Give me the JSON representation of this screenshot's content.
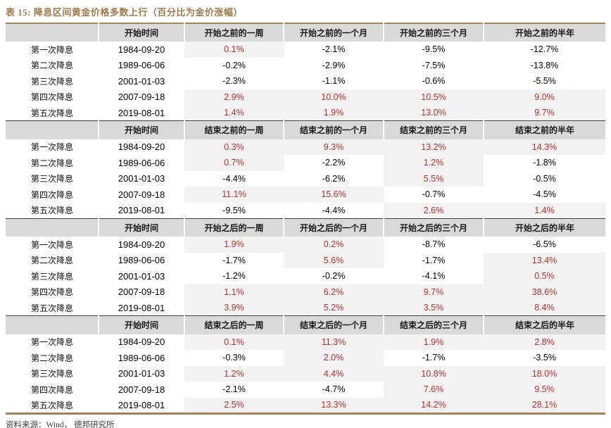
{
  "title": "表 15: 降息区间黄金价格多数上行（百分比为金价涨幅）",
  "footer": "资料来源：Wind， 德邦研究所",
  "colors": {
    "accent_brown": "#9c7a49",
    "rule_brown": "#a1835a",
    "header_bg": "#d9d9d9",
    "highlight_bg": "#f2f2f2",
    "highlight_text_red": "#b52f2f",
    "body_text": "#000000"
  },
  "table": {
    "sections": [
      {
        "headers": [
          "开始时间",
          "开始之前的一周",
          "开始之前的一个月",
          "开始之前的三个月",
          "开始之前的半年"
        ],
        "rows": [
          {
            "label": "第一次降息",
            "date": "1984-09-20",
            "values": [
              {
                "v": "0.1%",
                "hl": true
              },
              {
                "v": "-2.1%",
                "hl": false
              },
              {
                "v": "-9.5%",
                "hl": false
              },
              {
                "v": "-12.7%",
                "hl": false
              }
            ]
          },
          {
            "label": "第二次降息",
            "date": "1989-06-06",
            "values": [
              {
                "v": "-0.2%",
                "hl": false
              },
              {
                "v": "-2.9%",
                "hl": false
              },
              {
                "v": "-7.5%",
                "hl": false
              },
              {
                "v": "-13.8%",
                "hl": false
              }
            ]
          },
          {
            "label": "第三次降息",
            "date": "2001-01-03",
            "values": [
              {
                "v": "-2.3%",
                "hl": false
              },
              {
                "v": "-1.1%",
                "hl": false
              },
              {
                "v": "-0.6%",
                "hl": false
              },
              {
                "v": "-5.5%",
                "hl": false
              }
            ]
          },
          {
            "label": "第四次降息",
            "date": "2007-09-18",
            "values": [
              {
                "v": "2.9%",
                "hl": true
              },
              {
                "v": "10.0%",
                "hl": true
              },
              {
                "v": "10.5%",
                "hl": true
              },
              {
                "v": "9.0%",
                "hl": true
              }
            ]
          },
          {
            "label": "第五次降息",
            "date": "2019-08-01",
            "values": [
              {
                "v": "1.4%",
                "hl": true
              },
              {
                "v": "1.9%",
                "hl": true
              },
              {
                "v": "13.0%",
                "hl": true
              },
              {
                "v": "9.7%",
                "hl": true
              }
            ]
          }
        ]
      },
      {
        "headers": [
          "开始时间",
          "结束之前的一周",
          "结束之前的一个月",
          "结束之前的三个月",
          "结束之前的半年"
        ],
        "rows": [
          {
            "label": "第一次降息",
            "date": "1984-09-20",
            "values": [
              {
                "v": "0.3%",
                "hl": true
              },
              {
                "v": "9.3%",
                "hl": true
              },
              {
                "v": "13.2%",
                "hl": true
              },
              {
                "v": "14.3%",
                "hl": true
              }
            ]
          },
          {
            "label": "第二次降息",
            "date": "1989-06-06",
            "values": [
              {
                "v": "0.7%",
                "hl": true
              },
              {
                "v": "-2.2%",
                "hl": false
              },
              {
                "v": "1.2%",
                "hl": true
              },
              {
                "v": "-1.8%",
                "hl": false
              }
            ]
          },
          {
            "label": "第三次降息",
            "date": "2001-01-03",
            "values": [
              {
                "v": "-4.4%",
                "hl": false
              },
              {
                "v": "-6.2%",
                "hl": false
              },
              {
                "v": "5.5%",
                "hl": true
              },
              {
                "v": "-0.5%",
                "hl": false
              }
            ]
          },
          {
            "label": "第四次降息",
            "date": "2007-09-18",
            "values": [
              {
                "v": "11.1%",
                "hl": true
              },
              {
                "v": "15.6%",
                "hl": true
              },
              {
                "v": "-0.7%",
                "hl": false
              },
              {
                "v": "-4.5%",
                "hl": false
              }
            ]
          },
          {
            "label": "第五次降息",
            "date": "2019-08-01",
            "values": [
              {
                "v": "-9.5%",
                "hl": false
              },
              {
                "v": "-4.4%",
                "hl": false
              },
              {
                "v": "2.6%",
                "hl": true
              },
              {
                "v": "1.4%",
                "hl": true
              }
            ]
          }
        ]
      },
      {
        "headers": [
          "开始时间",
          "开始之后的一周",
          "开始之后的一个月",
          "开始之后的三个月",
          "开始之后的半年"
        ],
        "rows": [
          {
            "label": "第一次降息",
            "date": "1984-09-20",
            "values": [
              {
                "v": "1.9%",
                "hl": true
              },
              {
                "v": "0.2%",
                "hl": true
              },
              {
                "v": "-8.7%",
                "hl": false
              },
              {
                "v": "-6.5%",
                "hl": false
              }
            ]
          },
          {
            "label": "第二次降息",
            "date": "1989-06-06",
            "values": [
              {
                "v": "-1.7%",
                "hl": false
              },
              {
                "v": "5.6%",
                "hl": true
              },
              {
                "v": "-1.7%",
                "hl": false
              },
              {
                "v": "13.4%",
                "hl": true
              }
            ]
          },
          {
            "label": "第三次降息",
            "date": "2001-01-03",
            "values": [
              {
                "v": "-1.2%",
                "hl": false
              },
              {
                "v": "-0.2%",
                "hl": false
              },
              {
                "v": "-4.1%",
                "hl": false
              },
              {
                "v": "0.5%",
                "hl": true
              }
            ]
          },
          {
            "label": "第四次降息",
            "date": "2007-09-18",
            "values": [
              {
                "v": "1.1%",
                "hl": true
              },
              {
                "v": "6.2%",
                "hl": true
              },
              {
                "v": "9.7%",
                "hl": true
              },
              {
                "v": "38.6%",
                "hl": true
              }
            ]
          },
          {
            "label": "第五次降息",
            "date": "2019-08-01",
            "values": [
              {
                "v": "3.9%",
                "hl": true
              },
              {
                "v": "5.2%",
                "hl": true
              },
              {
                "v": "3.5%",
                "hl": true
              },
              {
                "v": "8.4%",
                "hl": true
              }
            ]
          }
        ]
      },
      {
        "headers": [
          "开始时间",
          "结束之后的一周",
          "结束之后的一个月",
          "结束之后的三个月",
          "结束之后的半年"
        ],
        "rows": [
          {
            "label": "第一次降息",
            "date": "1984-09-20",
            "values": [
              {
                "v": "0.1%",
                "hl": true
              },
              {
                "v": "11.3%",
                "hl": true
              },
              {
                "v": "1.9%",
                "hl": true
              },
              {
                "v": "2.8%",
                "hl": true
              }
            ]
          },
          {
            "label": "第二次降息",
            "date": "1989-06-06",
            "values": [
              {
                "v": "-0.3%",
                "hl": false
              },
              {
                "v": "2.0%",
                "hl": true
              },
              {
                "v": "-1.7%",
                "hl": false
              },
              {
                "v": "-3.5%",
                "hl": false
              }
            ]
          },
          {
            "label": "第三次降息",
            "date": "2001-01-03",
            "values": [
              {
                "v": "1.2%",
                "hl": true
              },
              {
                "v": "4.4%",
                "hl": true
              },
              {
                "v": "10.8%",
                "hl": true
              },
              {
                "v": "18.0%",
                "hl": true
              }
            ]
          },
          {
            "label": "第四次降息",
            "date": "2007-09-18",
            "values": [
              {
                "v": "-2.1%",
                "hl": false
              },
              {
                "v": "-4.7%",
                "hl": false
              },
              {
                "v": "7.6%",
                "hl": true
              },
              {
                "v": "9.5%",
                "hl": true
              }
            ]
          },
          {
            "label": "第五次降息",
            "date": "2019-08-01",
            "values": [
              {
                "v": "2.5%",
                "hl": true
              },
              {
                "v": "13.3%",
                "hl": true
              },
              {
                "v": "14.2%",
                "hl": true
              },
              {
                "v": "28.1%",
                "hl": true
              }
            ]
          }
        ]
      }
    ]
  }
}
